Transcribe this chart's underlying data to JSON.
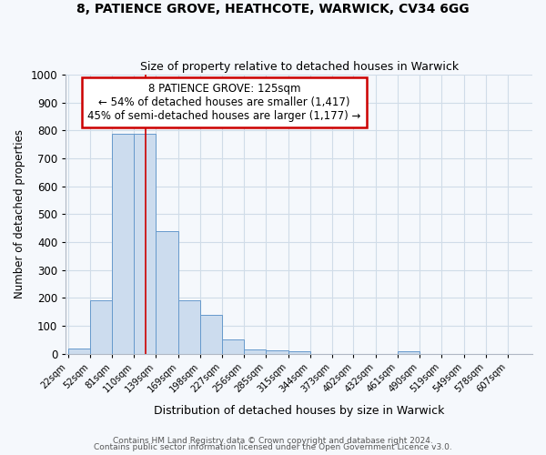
{
  "title1": "8, PATIENCE GROVE, HEATHCOTE, WARWICK, CV34 6GG",
  "title2": "Size of property relative to detached houses in Warwick",
  "xlabel": "Distribution of detached houses by size in Warwick",
  "ylabel": "Number of detached properties",
  "bin_labels": [
    "22sqm",
    "52sqm",
    "81sqm",
    "110sqm",
    "139sqm",
    "169sqm",
    "198sqm",
    "227sqm",
    "256sqm",
    "285sqm",
    "315sqm",
    "344sqm",
    "373sqm",
    "402sqm",
    "432sqm",
    "461sqm",
    "490sqm",
    "519sqm",
    "549sqm",
    "578sqm",
    "607sqm"
  ],
  "bin_edges": [
    22,
    52,
    81,
    110,
    139,
    169,
    198,
    227,
    256,
    285,
    315,
    344,
    373,
    402,
    432,
    461,
    490,
    519,
    549,
    578,
    607
  ],
  "bar_heights": [
    18,
    193,
    787,
    787,
    440,
    193,
    140,
    50,
    15,
    12,
    10,
    0,
    0,
    0,
    0,
    10,
    0,
    0,
    0,
    0
  ],
  "bar_color": "#ccdcee",
  "bar_edge_color": "#6699cc",
  "vline_x": 125,
  "vline_color": "#cc0000",
  "annotation_line1": "8 PATIENCE GROVE: 125sqm",
  "annotation_line2": "← 54% of detached houses are smaller (1,417)",
  "annotation_line3": "45% of semi-detached houses are larger (1,177) →",
  "annotation_box_color": "#ffffff",
  "annotation_box_edge": "#cc0000",
  "ylim": [
    0,
    1000
  ],
  "yticks": [
    0,
    100,
    200,
    300,
    400,
    500,
    600,
    700,
    800,
    900,
    1000
  ],
  "footer1": "Contains HM Land Registry data © Crown copyright and database right 2024.",
  "footer2": "Contains public sector information licensed under the Open Government Licence v3.0.",
  "bg_color": "#f5f8fc",
  "grid_color": "#d8e4f0"
}
